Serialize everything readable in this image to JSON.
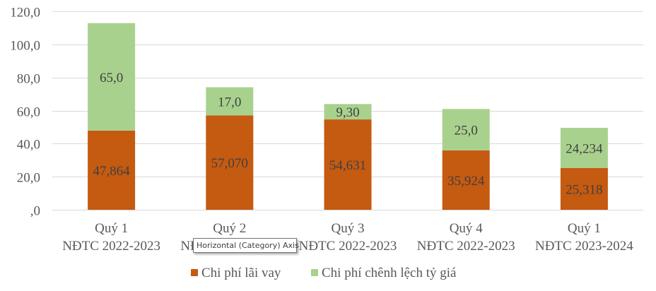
{
  "chart_data": {
    "type": "bar",
    "stacked": true,
    "title": "",
    "xlabel": "",
    "ylabel": "",
    "ylim": [
      0,
      120
    ],
    "y_ticks": [
      ",0",
      "20,0",
      "40,0",
      "60,0",
      "80,0",
      "100,0",
      "120,0"
    ],
    "y_tick_values": [
      0,
      20,
      40,
      60,
      80,
      100,
      120
    ],
    "grid": true,
    "legend_position": "bottom",
    "categories": [
      [
        "Quý 1",
        "NĐTC 2022-2023"
      ],
      [
        "Quý 2",
        "NĐTC 2022-2023"
      ],
      [
        "Quý 3",
        "NĐTC 2022-2023"
      ],
      [
        "Quý 4",
        "NĐTC 2022-2023"
      ],
      [
        "Quý 1",
        "NĐTC 2023-2024"
      ]
    ],
    "series": [
      {
        "name": "Chi phí lãi vay",
        "color": "#C55A11",
        "values": [
          47.864,
          57.07,
          54.631,
          35.924,
          25.318
        ],
        "labels": [
          "47,864",
          "57,070",
          "54,631",
          "35,924",
          "25,318"
        ]
      },
      {
        "name": "Chi phí chênh lệch tỷ giá",
        "color": "#A9D18E",
        "values": [
          65.0,
          17.0,
          9.3,
          25.0,
          24.234
        ],
        "labels": [
          "65,0",
          "17,0",
          "9,30",
          "25,0",
          "24,234"
        ]
      }
    ]
  },
  "tooltip": {
    "text": "Horizontal (Category) Axis"
  }
}
